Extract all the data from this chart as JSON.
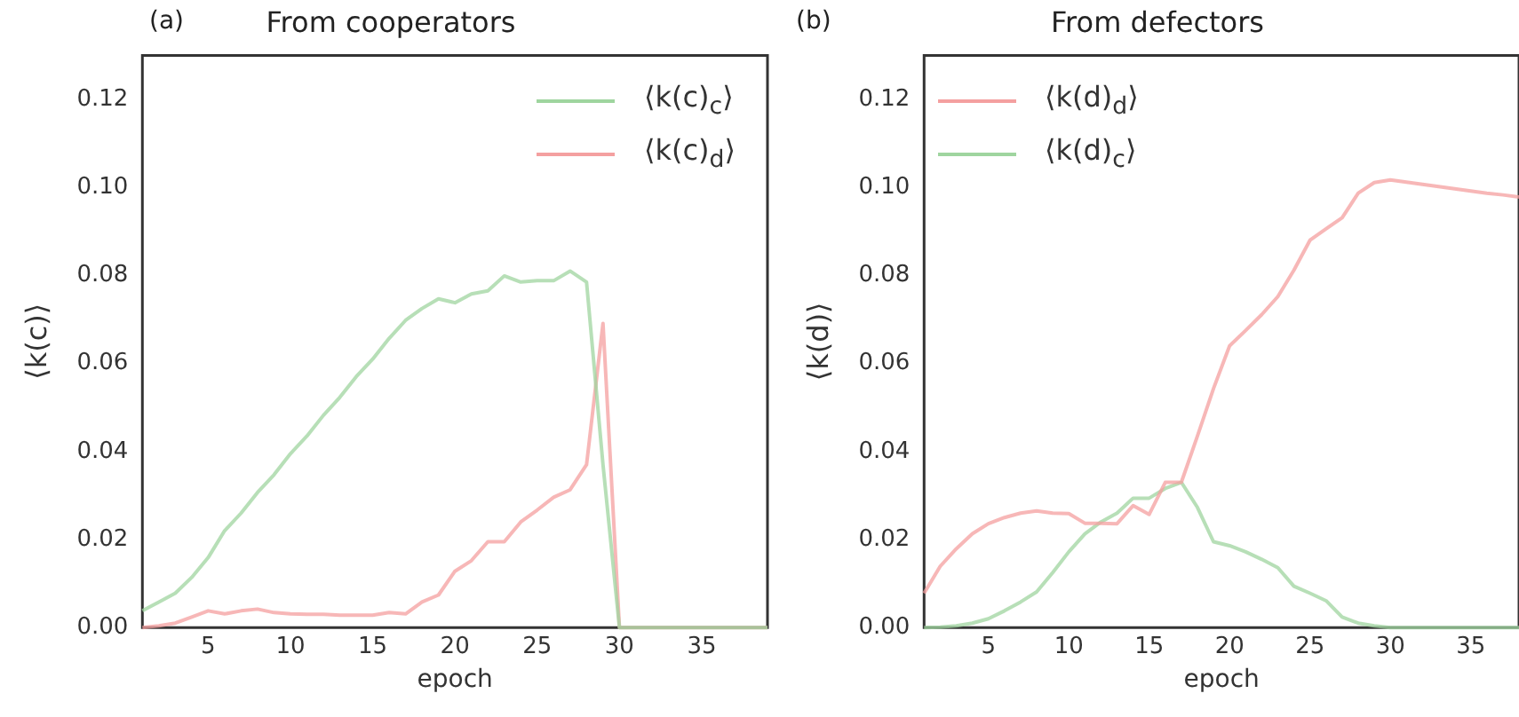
{
  "chart_data": [
    {
      "type": "line",
      "title": "From cooperators",
      "xlabel": "epoch",
      "ylabel": "⟨k(c)⟩",
      "annotations": [
        "(a)"
      ],
      "legend": "top right",
      "grid": false,
      "xlim": [
        1,
        39
      ],
      "xticks": [
        5,
        10,
        15,
        20,
        25,
        30,
        35
      ],
      "ylim": [
        0,
        0.13
      ],
      "yticks": [
        {
          "value": 0,
          "label": "0.00"
        },
        {
          "value": 0.02,
          "label": "0.02"
        },
        {
          "value": 0.04,
          "label": "0.04"
        },
        {
          "value": 0.06,
          "label": "0.06"
        },
        {
          "value": 0.08,
          "label": "0.08"
        },
        {
          "value": 0.1,
          "label": "0.10"
        },
        {
          "value": 0.12,
          "label": "0.12"
        }
      ],
      "x": [
        1,
        2,
        3,
        4,
        5,
        6,
        7,
        8,
        9,
        10,
        11,
        12,
        13,
        14,
        15,
        16,
        17,
        18,
        19,
        20,
        21,
        22,
        23,
        24,
        25,
        26,
        27,
        28,
        29,
        30,
        31,
        32,
        33,
        34,
        35,
        36,
        37,
        38,
        39
      ],
      "series": [
        {
          "name": "⟨k(c)$_{c}$⟩",
          "color": "#9fd59f",
          "values": [
            0.0038,
            0.0058,
            0.0078,
            0.0114,
            0.0159,
            0.022,
            0.026,
            0.0307,
            0.0347,
            0.0395,
            0.0435,
            0.0482,
            0.0523,
            0.057,
            0.061,
            0.0657,
            0.0698,
            0.0725,
            0.0747,
            0.0738,
            0.0758,
            0.0765,
            0.0799,
            0.0785,
            0.0788,
            0.0788,
            0.081,
            0.0785,
            0.037,
            0,
            0,
            0,
            0,
            0,
            0,
            0,
            0,
            0,
            0
          ]
        },
        {
          "name": "⟨k(c)$_{d}$⟩",
          "color": "#f4a0a0",
          "values": [
            0,
            0.0004,
            0.001,
            0.0024,
            0.0038,
            0.0031,
            0.0038,
            0.0042,
            0.0034,
            0.0031,
            0.003,
            0.003,
            0.0028,
            0.0028,
            0.0028,
            0.0034,
            0.0031,
            0.0058,
            0.0074,
            0.0128,
            0.0152,
            0.0195,
            0.0195,
            0.024,
            0.0267,
            0.0296,
            0.0313,
            0.037,
            0.0691,
            0,
            0,
            0,
            0,
            0,
            0,
            0,
            0,
            0,
            0
          ]
        }
      ]
    },
    {
      "type": "line",
      "title": "From defectors",
      "xlabel": "epoch",
      "ylabel": "⟨k(d)⟩",
      "annotations": [
        "(b)"
      ],
      "legend": "top left",
      "grid": false,
      "xlim": [
        1,
        38
      ],
      "xticks": [
        5,
        10,
        15,
        20,
        25,
        30,
        35
      ],
      "ylim": [
        0,
        0.13
      ],
      "yticks": [
        {
          "value": 0,
          "label": "0.00"
        },
        {
          "value": 0.02,
          "label": "0.02"
        },
        {
          "value": 0.04,
          "label": "0.04"
        },
        {
          "value": 0.06,
          "label": "0.06"
        },
        {
          "value": 0.08,
          "label": "0.08"
        },
        {
          "value": 0.1,
          "label": "0.10"
        },
        {
          "value": 0.12,
          "label": "0.12"
        }
      ],
      "x": [
        1,
        2,
        3,
        4,
        5,
        6,
        7,
        8,
        9,
        10,
        11,
        12,
        13,
        14,
        15,
        16,
        17,
        18,
        19,
        20,
        21,
        22,
        23,
        24,
        25,
        26,
        27,
        28,
        29,
        30,
        31,
        32,
        33,
        34,
        35,
        36,
        37,
        38
      ],
      "series": [
        {
          "name": "⟨k(d)$_{d}$⟩",
          "color": "#f4a0a0",
          "values": [
            0.0078,
            0.0139,
            0.0179,
            0.0213,
            0.0236,
            0.025,
            0.026,
            0.0265,
            0.026,
            0.0259,
            0.0237,
            0.0237,
            0.0236,
            0.0277,
            0.0257,
            0.033,
            0.033,
            0.0435,
            0.0543,
            0.064,
            0.0675,
            0.0711,
            0.0752,
            0.0812,
            0.088,
            0.0906,
            0.0931,
            0.0987,
            0.1011,
            0.1017,
            0.1012,
            0.1007,
            0.1002,
            0.0997,
            0.0992,
            0.0987,
            0.0983,
            0.0978
          ]
        },
        {
          "name": "⟨k(d)$_{c}$⟩",
          "color": "#9fd59f",
          "values": [
            0,
            0.0001,
            0.0004,
            0.001,
            0.002,
            0.0038,
            0.0058,
            0.0081,
            0.0125,
            0.0172,
            0.0213,
            0.024,
            0.026,
            0.0294,
            0.0294,
            0.0316,
            0.033,
            0.0273,
            0.0195,
            0.0186,
            0.0172,
            0.0155,
            0.0136,
            0.0094,
            0.0078,
            0.0061,
            0.0024,
            0.001,
            0.0004,
            0,
            0,
            0,
            0,
            0,
            0,
            0,
            0,
            0
          ]
        }
      ]
    }
  ]
}
